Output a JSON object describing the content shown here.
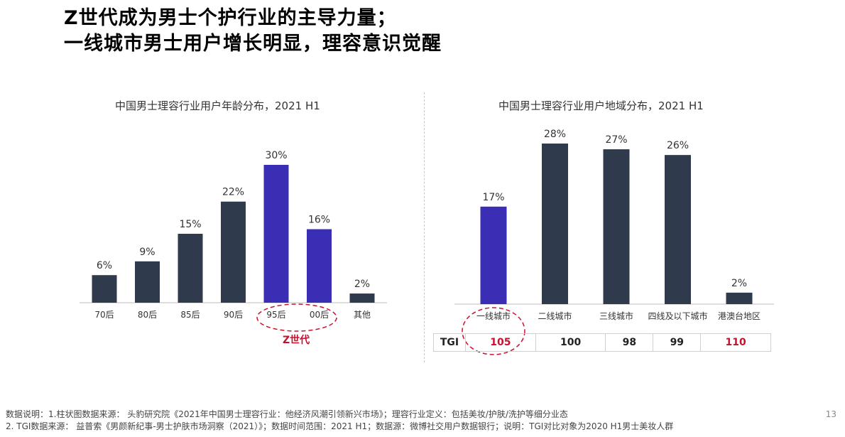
{
  "title": {
    "line1": "Z世代成为男士个护行业的主导力量；",
    "line2": "一线城市男士用户增长明显，理容意识觉醒"
  },
  "colors": {
    "bar_default": "#2f3a4c",
    "bar_highlight": "#3a2fb4",
    "accent_red": "#c8102e"
  },
  "chart_data": [
    {
      "type": "bar",
      "title": "中国男士理容行业用户年龄分布，2021 H1",
      "categories": [
        "70后",
        "80后",
        "85后",
        "90后",
        "95后",
        "00后",
        "其他"
      ],
      "values": [
        6,
        9,
        15,
        22,
        30,
        16,
        2
      ],
      "data_labels": [
        "6%",
        "9%",
        "15%",
        "22%",
        "30%",
        "16%",
        "2%"
      ],
      "highlight_indices": [
        4,
        5
      ],
      "annotation": "Z世代",
      "ylim": [
        0,
        30
      ]
    },
    {
      "type": "bar",
      "title": "中国男士理容行业用户地域分布，2021 H1",
      "categories": [
        "一线城市",
        "二线城市",
        "三线城市",
        "四线及以下城市",
        "港澳台地区"
      ],
      "values": [
        17,
        28,
        27,
        26,
        2
      ],
      "data_labels": [
        "17%",
        "28%",
        "27%",
        "26%",
        "2%"
      ],
      "highlight_indices": [
        0
      ],
      "ylim": [
        0,
        28
      ],
      "table": {
        "label": "TGI",
        "values": [
          "105",
          "100",
          "98",
          "99",
          "110"
        ],
        "red_indices": [
          0,
          4
        ]
      }
    }
  ],
  "footnotes": {
    "line1": "数据说明：1.柱状图数据来源： 头豹研究院《2021年中国男士理容行业：他经济风潮引领新兴市场》；理容行业定义：包括美妆/护肤/洗护等细分业态",
    "line2": "2. TGI数据来源： 益普索《男颜新纪事-男士护肤市场洞察（2021）》；数据时间范围：2021 H1；数据源：微博社交用户数据银行；说明：TGI对比对象为2020 H1男士美妆人群"
  },
  "page_number": "13"
}
